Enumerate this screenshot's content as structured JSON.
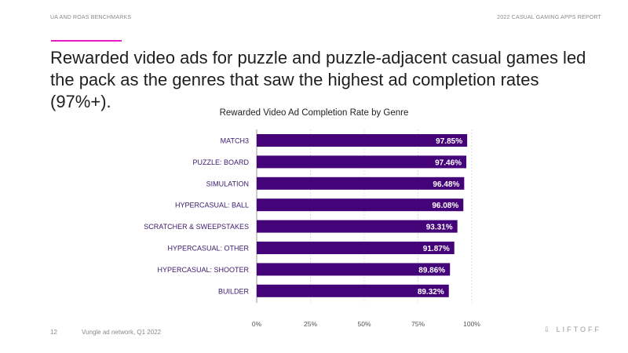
{
  "header": {
    "left": "UA AND ROAS BENCHMARKS",
    "right": "2022 CASUAL GAMING APPS REPORT"
  },
  "headline": "Rewarded video ads for puzzle and puzzle-adjacent casual games led the pack as the genres that saw the highest ad completion rates (97%+).",
  "footer": {
    "page": "12",
    "source": "Vungle ad network, Q1 2022",
    "logo": "LIFTOFF"
  },
  "colors": {
    "bar": "#45037a",
    "accent": "#e81cc6",
    "label": "#3a1a6a"
  },
  "chart_data": {
    "type": "bar",
    "orientation": "horizontal",
    "title": "Rewarded Video Ad Completion Rate by Genre",
    "categories": [
      "MATCH3",
      "PUZZLE: BOARD",
      "SIMULATION",
      "HYPERCASUAL: BALL",
      "SCRATCHER & SWEEPSTAKES",
      "HYPERCASUAL: OTHER",
      "HYPERCASUAL: SHOOTER",
      "BUILDER"
    ],
    "values": [
      97.85,
      97.46,
      96.48,
      96.08,
      93.31,
      91.87,
      89.86,
      89.32
    ],
    "data_labels": [
      "97.85%",
      "97.46%",
      "96.48%",
      "96.08%",
      "93.31%",
      "91.87%",
      "89.86%",
      "89.32%"
    ],
    "xlim": [
      0,
      100
    ],
    "xticks": [
      0,
      25,
      50,
      75,
      100
    ],
    "xtick_labels": [
      "0%",
      "25%",
      "50%",
      "75%",
      "100%"
    ],
    "grid": true,
    "xlabel": "",
    "ylabel": ""
  }
}
